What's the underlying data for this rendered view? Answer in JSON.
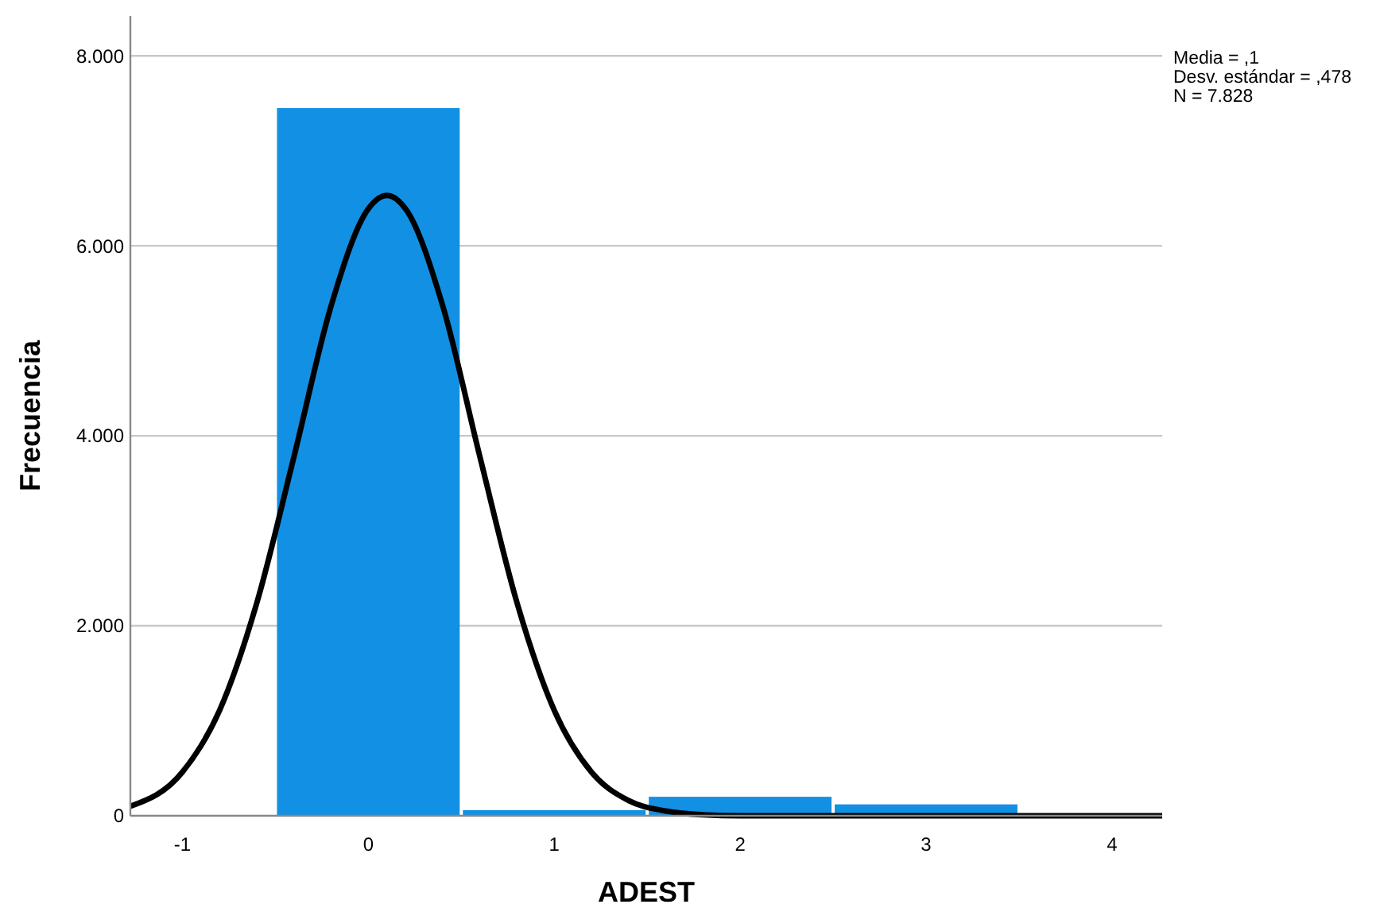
{
  "chart_data": {
    "type": "histogram",
    "xlabel": "ADEST",
    "ylabel": "Frecuencia",
    "annotations": [
      "Media = ,1",
      "Desv. estándar = ,478",
      "N = 7.828"
    ],
    "bins": [
      -0.5,
      0.5,
      1.5,
      2.5,
      3.5
    ],
    "values": [
      7450,
      60,
      200,
      120
    ],
    "color": "#1290e4",
    "series": [
      {
        "type": "line",
        "color": "#000000",
        "x": [
          -1.28,
          -1.0,
          -0.8,
          -0.6,
          -0.4,
          -0.2,
          0,
          0.1,
          0.2,
          0.4,
          0.6,
          0.8,
          1.0,
          1.2,
          1.4,
          1.6,
          1.8,
          2.0,
          4.27
        ],
        "values": [
          100,
          460,
          1110,
          2240,
          3780,
          5370,
          6390,
          6530,
          6390,
          5370,
          3780,
          2240,
          1110,
          460,
          160,
          50,
          10,
          0,
          0
        ]
      }
    ],
    "xlim": [
      -1.28,
      4.27
    ],
    "ylim": [
      0,
      8420
    ],
    "xticks": [
      -1,
      0,
      1,
      2,
      3,
      4
    ],
    "yticks": [
      0,
      {
        "value": 2000,
        "label": "2.000"
      },
      {
        "value": 4000,
        "label": "4.000"
      },
      {
        "value": 6000,
        "label": "6.000"
      },
      {
        "value": 8000,
        "label": "8.000"
      }
    ],
    "grid": "y",
    "marker": "none",
    "line_style": "solid"
  }
}
